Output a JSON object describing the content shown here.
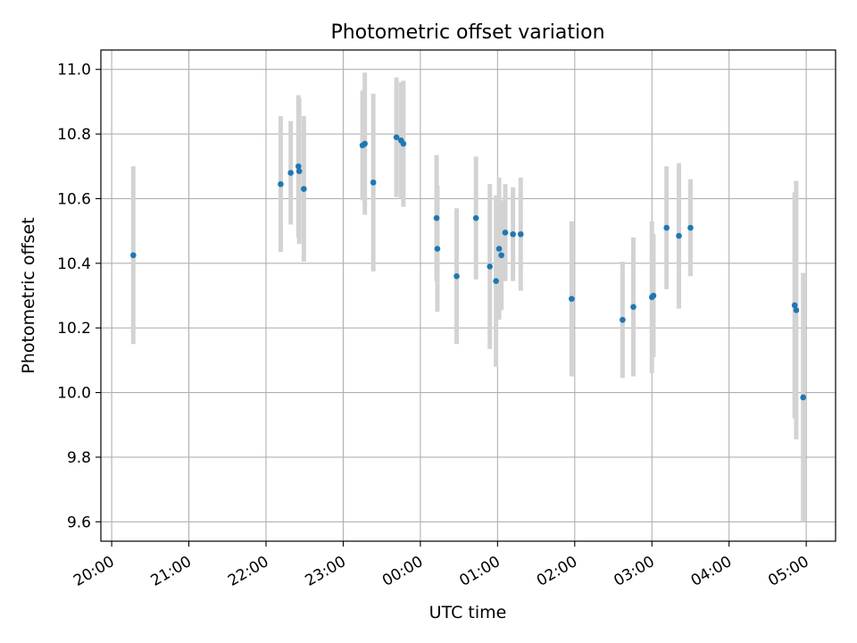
{
  "chart_data": {
    "type": "scatter",
    "title": "Photometric offset variation",
    "xlabel": "UTC time",
    "ylabel": "Photometric offset",
    "x_tick_labels": [
      "20:00",
      "21:00",
      "22:00",
      "23:00",
      "00:00",
      "01:00",
      "02:00",
      "03:00",
      "04:00",
      "05:00"
    ],
    "x_ticks_hours": [
      20,
      21,
      22,
      23,
      24,
      25,
      26,
      27,
      28,
      29
    ],
    "y_ticks": [
      9.6,
      9.8,
      10.0,
      10.2,
      10.4,
      10.6,
      10.8,
      11.0
    ],
    "y_tick_labels": [
      "9.6",
      "9.8",
      "10.0",
      "10.2",
      "10.4",
      "10.6",
      "10.8",
      "11.0"
    ],
    "xlim_hours": [
      19.86,
      29.38
    ],
    "ylim": [
      9.54,
      11.06
    ],
    "grid": true,
    "colors": {
      "marker": "#1f77b4",
      "errorbar": "#d3d3d3",
      "grid": "#b0b0b0"
    },
    "x_unit_note": "hours after 00:00 of first night; values > 24 are after midnight",
    "series": [
      {
        "points": [
          {
            "x": 20.28,
            "y": 10.425,
            "err": 0.275
          },
          {
            "x": 22.19,
            "y": 10.645,
            "err": 0.21
          },
          {
            "x": 22.32,
            "y": 10.68,
            "err": 0.16
          },
          {
            "x": 22.42,
            "y": 10.7,
            "err": 0.22
          },
          {
            "x": 22.43,
            "y": 10.685,
            "err": 0.225
          },
          {
            "x": 22.49,
            "y": 10.63,
            "err": 0.225
          },
          {
            "x": 23.25,
            "y": 10.765,
            "err": 0.17
          },
          {
            "x": 23.28,
            "y": 10.77,
            "err": 0.22
          },
          {
            "x": 23.39,
            "y": 10.65,
            "err": 0.275
          },
          {
            "x": 23.69,
            "y": 10.79,
            "err": 0.185
          },
          {
            "x": 23.75,
            "y": 10.78,
            "err": 0.18
          },
          {
            "x": 23.78,
            "y": 10.77,
            "err": 0.195
          },
          {
            "x": 24.21,
            "y": 10.54,
            "err": 0.195
          },
          {
            "x": 24.22,
            "y": 10.445,
            "err": 0.195
          },
          {
            "x": 24.47,
            "y": 10.36,
            "err": 0.21
          },
          {
            "x": 24.72,
            "y": 10.54,
            "err": 0.19
          },
          {
            "x": 24.9,
            "y": 10.39,
            "err": 0.255
          },
          {
            "x": 24.98,
            "y": 10.345,
            "err": 0.265
          },
          {
            "x": 25.02,
            "y": 10.445,
            "err": 0.22
          },
          {
            "x": 25.05,
            "y": 10.425,
            "err": 0.17
          },
          {
            "x": 25.1,
            "y": 10.495,
            "err": 0.15
          },
          {
            "x": 25.2,
            "y": 10.49,
            "err": 0.145
          },
          {
            "x": 25.3,
            "y": 10.49,
            "err": 0.175
          },
          {
            "x": 25.96,
            "y": 10.29,
            "err": 0.24
          },
          {
            "x": 26.62,
            "y": 10.225,
            "err": 0.18
          },
          {
            "x": 26.76,
            "y": 10.265,
            "err": 0.215
          },
          {
            "x": 27.0,
            "y": 10.295,
            "err": 0.235
          },
          {
            "x": 27.02,
            "y": 10.3,
            "err": 0.19
          },
          {
            "x": 27.19,
            "y": 10.51,
            "err": 0.19
          },
          {
            "x": 27.35,
            "y": 10.485,
            "err": 0.225
          },
          {
            "x": 27.5,
            "y": 10.51,
            "err": 0.15
          },
          {
            "x": 28.85,
            "y": 10.27,
            "err": 0.35
          },
          {
            "x": 28.87,
            "y": 10.255,
            "err": 0.4
          },
          {
            "x": 28.96,
            "y": 9.985,
            "err": 0.385
          }
        ]
      }
    ]
  }
}
